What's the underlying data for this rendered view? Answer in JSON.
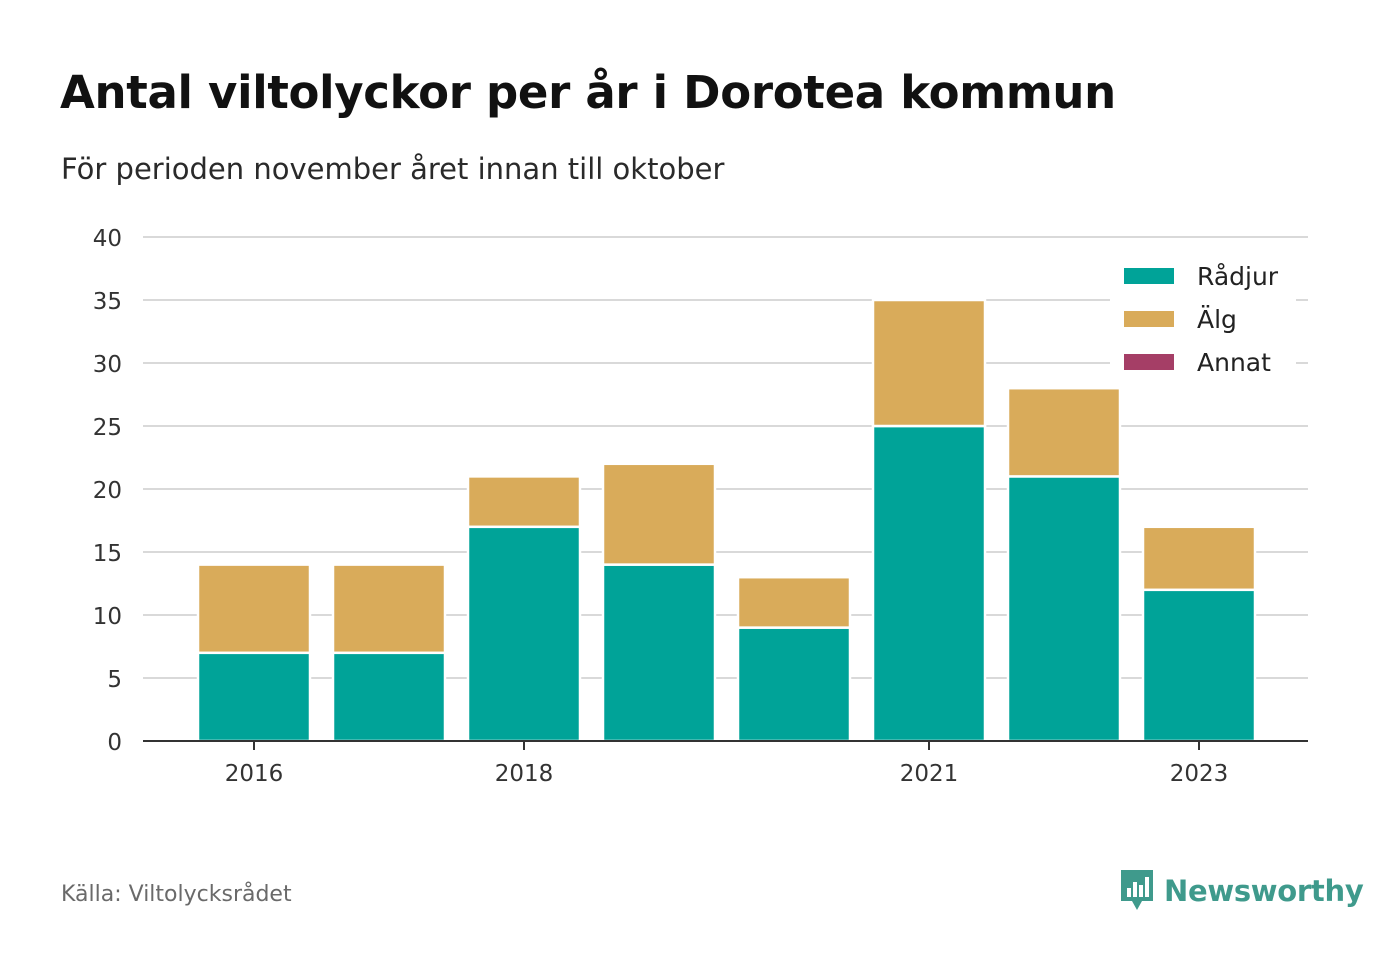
{
  "title": "Antal viltolyckor per år i Dorotea kommun",
  "subtitle": "För perioden november året innan till oktober",
  "source": "Källa: Viltolycksrådet",
  "brand": {
    "name": "Newsworthy",
    "icon": "newsworthy-logo-icon",
    "color": "#3f9a8c"
  },
  "chart_data": {
    "type": "bar",
    "stacked": true,
    "years": [
      2016,
      2017,
      2018,
      2019,
      2020,
      2021,
      2022,
      2023
    ],
    "x_tick_labels": [
      "2016",
      "2018",
      "2021",
      "2023"
    ],
    "x_tick_years": [
      2016,
      2018,
      2021,
      2023
    ],
    "y_ticks": [
      "0",
      "5",
      "10",
      "15",
      "20",
      "25",
      "30",
      "35",
      "40"
    ],
    "y_tick_values": [
      0,
      5,
      10,
      15,
      20,
      25,
      30,
      35,
      40
    ],
    "ylim": [
      0,
      40
    ],
    "grid": true,
    "legend_position": "top-right",
    "series": [
      {
        "name": "Rådjur",
        "color": "#00a398",
        "values": [
          7,
          7,
          17,
          14,
          9,
          25,
          21,
          12
        ]
      },
      {
        "name": "Älg",
        "color": "#d9ab5a",
        "values": [
          7,
          7,
          4,
          8,
          4,
          10,
          7,
          5
        ]
      },
      {
        "name": "Annat",
        "color": "#a53e66",
        "values": [
          0,
          0,
          0,
          0,
          0,
          0,
          0,
          0
        ]
      }
    ]
  }
}
